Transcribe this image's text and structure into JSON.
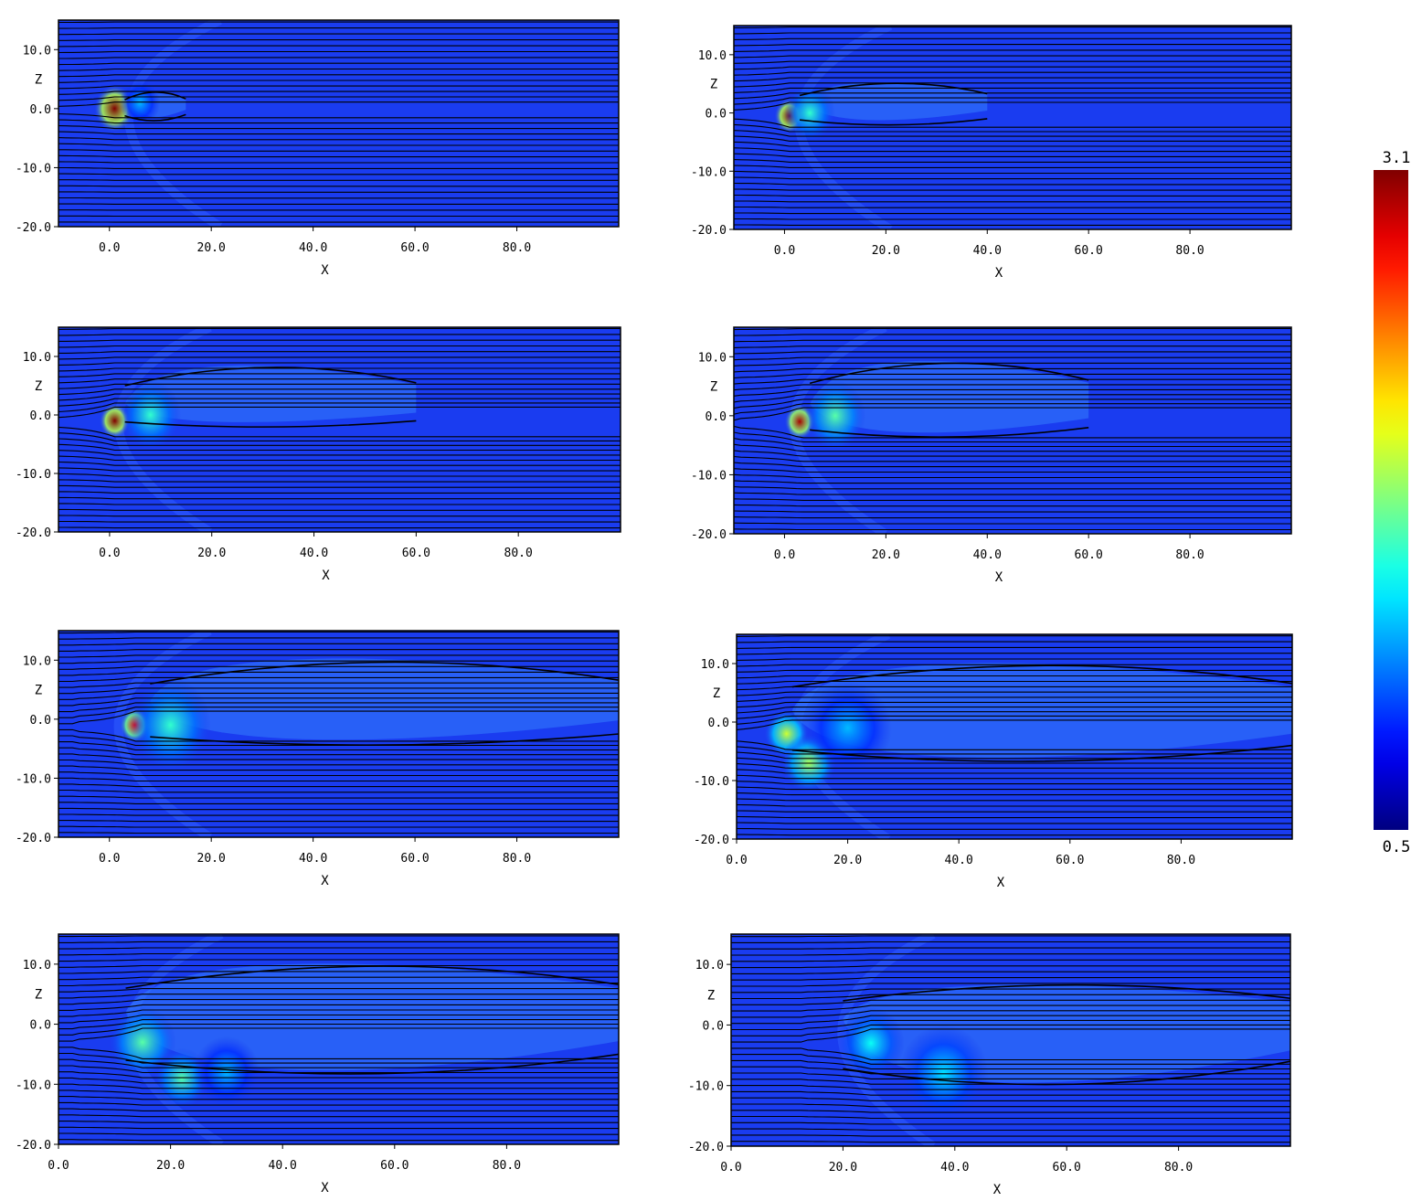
{
  "colors": {
    "background_field": "#1a3cf0",
    "streamline": "#000000",
    "frame": "#000000"
  },
  "colorbar": {
    "max_label": "3.1",
    "min_label": "0.5",
    "max": 3.1,
    "min": 0.5,
    "colormap": "jet"
  },
  "chart_data": [
    {
      "type": "heatmap",
      "panel": 1,
      "xlabel": "X",
      "ylabel": "Z",
      "xlim": [
        -10,
        100
      ],
      "ylim": [
        -20,
        15
      ],
      "x_ticks": [
        "0.0",
        "20.0",
        "40.0",
        "60.0",
        "80.0"
      ],
      "y_ticks": [
        "10.0",
        "0.0",
        "-10.0",
        "-20.0"
      ],
      "blobs": [
        {
          "x": 1,
          "z": 0,
          "r": 4,
          "v": 3.1
        },
        {
          "x": 6,
          "z": 1,
          "r": 4,
          "v": 1.3
        }
      ],
      "wake": {
        "start": 3,
        "end": 15,
        "center": 1,
        "top": 3,
        "bottom": -2
      },
      "bow_shock_x": -7
    },
    {
      "type": "heatmap",
      "panel": 2,
      "xlabel": "X",
      "ylabel": "Z",
      "xlim": [
        -10,
        100
      ],
      "ylim": [
        -20,
        15
      ],
      "x_ticks": [
        "0.0",
        "20.0",
        "40.0",
        "60.0",
        "80.0"
      ],
      "y_ticks": [
        "10.0",
        "0.0",
        "-10.0",
        "-20.0"
      ],
      "blobs": [
        {
          "x": 1,
          "z": -0.5,
          "r": 3,
          "v": 3.1
        },
        {
          "x": 5,
          "z": 0,
          "r": 5,
          "v": 1.6
        }
      ],
      "wake": {
        "start": 3,
        "end": 40,
        "center": 2,
        "top": 6,
        "bottom": -2
      },
      "bow_shock_x": -8
    },
    {
      "type": "heatmap",
      "panel": 3,
      "xlabel": "X",
      "ylabel": "Z",
      "xlim": [
        -10,
        100
      ],
      "ylim": [
        -20,
        15
      ],
      "x_ticks": [
        "0.0",
        "20.0",
        "40.0",
        "60.0",
        "80.0"
      ],
      "y_ticks": [
        "10.0",
        "0.0",
        "-10.0",
        "-20.0"
      ],
      "blobs": [
        {
          "x": 1,
          "z": -1,
          "r": 3,
          "v": 3.1
        },
        {
          "x": 8,
          "z": 0,
          "r": 6,
          "v": 1.6
        }
      ],
      "wake": {
        "start": 3,
        "end": 60,
        "center": 2,
        "top": 10,
        "bottom": -2
      },
      "bow_shock_x": -9
    },
    {
      "type": "heatmap",
      "panel": 4,
      "xlabel": "X",
      "ylabel": "Z",
      "xlim": [
        -10,
        100
      ],
      "ylim": [
        -20,
        15
      ],
      "x_ticks": [
        "0.0",
        "20.0",
        "40.0",
        "60.0",
        "80.0"
      ],
      "y_ticks": [
        "10.0",
        "0.0",
        "-10.0",
        "-20.0"
      ],
      "blobs": [
        {
          "x": 3,
          "z": -1,
          "r": 3,
          "v": 3.0
        },
        {
          "x": 10,
          "z": 0,
          "r": 6,
          "v": 1.7
        }
      ],
      "wake": {
        "start": 5,
        "end": 60,
        "center": 2,
        "top": 11,
        "bottom": -4
      },
      "bow_shock_x": -9
    },
    {
      "type": "heatmap",
      "panel": 5,
      "xlabel": "X",
      "ylabel": "Z",
      "xlim": [
        -10,
        100
      ],
      "ylim": [
        -20,
        15
      ],
      "x_ticks": [
        "0.0",
        "20.0",
        "40.0",
        "60.0",
        "80.0"
      ],
      "y_ticks": [
        "10.0",
        "0.0",
        "-10.0",
        "-20.0"
      ],
      "blobs": [
        {
          "x": 5,
          "z": -1,
          "r": 3,
          "v": 2.8
        },
        {
          "x": 12,
          "z": -1,
          "r": 8,
          "v": 1.6
        }
      ],
      "wake": {
        "start": 8,
        "end": 100,
        "center": 3,
        "top": 12,
        "bottom": -5
      },
      "bow_shock_x": -9
    },
    {
      "type": "heatmap",
      "panel": 6,
      "xlabel": "X",
      "ylabel": "Z",
      "xlim": [
        0,
        100
      ],
      "ylim": [
        -20,
        15
      ],
      "x_ticks": [
        "0.0",
        "20.0",
        "40.0",
        "60.0",
        "80.0"
      ],
      "y_ticks": [
        "10.0",
        "0.0",
        "-10.0",
        "-20.0"
      ],
      "blobs": [
        {
          "x": 9,
          "z": -2,
          "r": 4,
          "v": 2.0
        },
        {
          "x": 13,
          "z": -7,
          "r": 5,
          "v": 1.9
        },
        {
          "x": 20,
          "z": -1,
          "r": 8,
          "v": 1.3
        }
      ],
      "wake": {
        "start": 10,
        "end": 100,
        "center": 2,
        "top": 12,
        "bottom": -8
      },
      "bow_shock_x": 1
    },
    {
      "type": "heatmap",
      "panel": 7,
      "xlabel": "X",
      "ylabel": "Z",
      "xlim": [
        0,
        100
      ],
      "ylim": [
        -20,
        15
      ],
      "x_ticks": [
        "0.0",
        "20.0",
        "40.0",
        "60.0",
        "80.0"
      ],
      "y_ticks": [
        "10.0",
        "0.0",
        "-10.0",
        "-20.0"
      ],
      "blobs": [
        {
          "x": 15,
          "z": -3,
          "r": 6,
          "v": 1.7
        },
        {
          "x": 22,
          "z": -9,
          "r": 5,
          "v": 1.7
        },
        {
          "x": 30,
          "z": -8,
          "r": 6,
          "v": 1.3
        }
      ],
      "wake": {
        "start": 12,
        "end": 100,
        "center": 2,
        "top": 12,
        "bottom": -10
      },
      "bow_shock_x": 3
    },
    {
      "type": "heatmap",
      "panel": 8,
      "xlabel": "X",
      "ylabel": "Z",
      "xlim": [
        0,
        100
      ],
      "ylim": [
        -20,
        15
      ],
      "x_ticks": [
        "0.0",
        "20.0",
        "40.0",
        "60.0",
        "80.0"
      ],
      "y_ticks": [
        "10.0",
        "0.0",
        "-10.0",
        "-20.0"
      ],
      "blobs": [
        {
          "x": 25,
          "z": -3,
          "r": 6,
          "v": 1.5
        },
        {
          "x": 38,
          "z": -8,
          "r": 8,
          "v": 1.4
        }
      ],
      "wake": {
        "start": 20,
        "end": 100,
        "center": 1,
        "top": 8,
        "bottom": -12
      },
      "bow_shock_x": 10
    }
  ]
}
